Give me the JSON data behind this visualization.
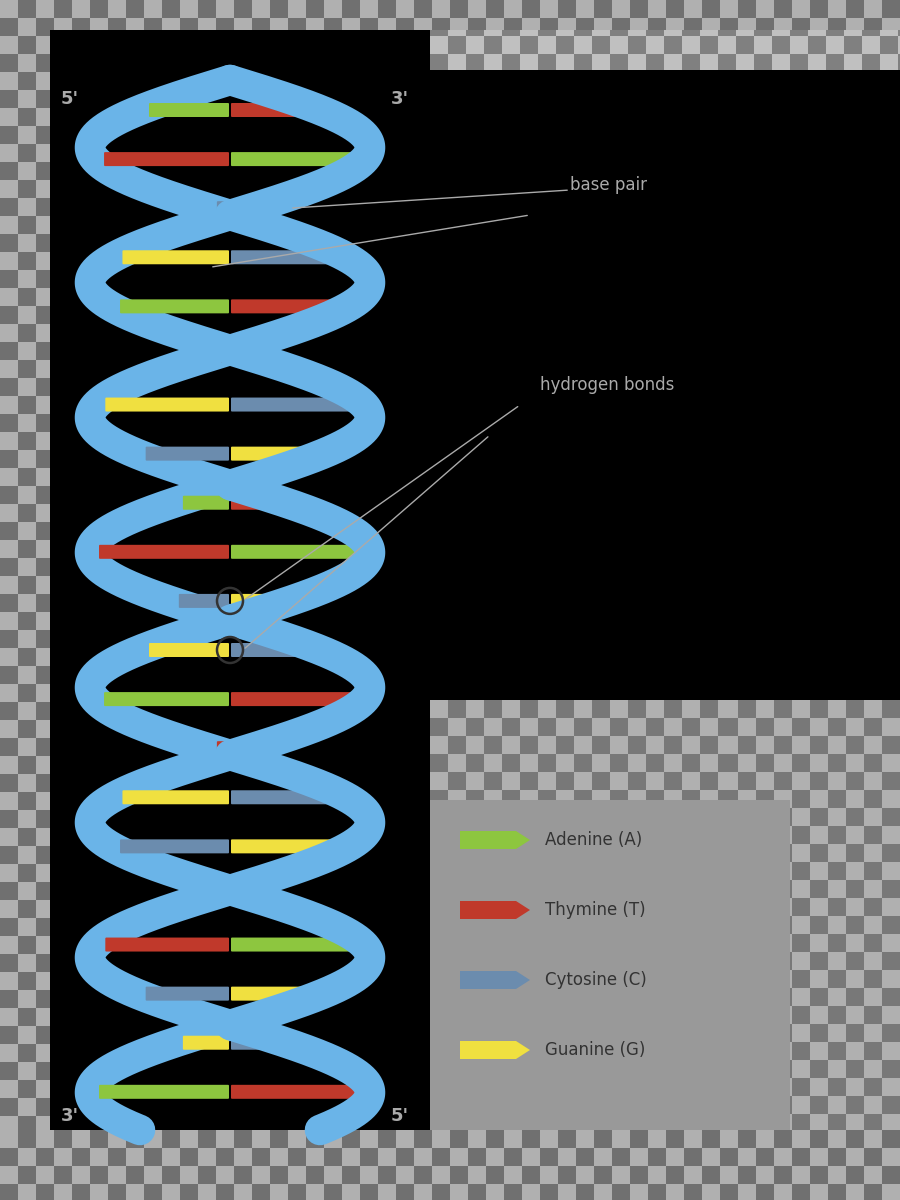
{
  "background_color": "#000000",
  "helix_color": "#6ab4e8",
  "adenine_color": "#8dc63f",
  "thymine_color": "#c0392b",
  "cytosine_color": "#6b8cae",
  "guanine_color": "#f0e040",
  "text_color": "#aaaaaa",
  "strand_lw": 22,
  "legend_items": [
    {
      "label": "Adenine (A)",
      "color": "#8dc63f"
    },
    {
      "label": "Thymine (T)",
      "color": "#c0392b"
    },
    {
      "label": "Cytosine (C)",
      "color": "#6b8cae"
    },
    {
      "label": "Guanine (G)",
      "color": "#f0e040"
    }
  ],
  "label_5prime_top_left": "5'",
  "label_3prime_top_right": "3'",
  "label_3prime_bottom_left": "3'",
  "label_5prime_bottom_right": "5'",
  "annotation_base_pair": "base pair",
  "annotation_hydrogen": "hydrogen bonds",
  "checkerboard_color1": "#c8c8c8",
  "checkerboard_color2": "#888888",
  "black_panel_color": "#000000",
  "gray_panel_color": "#999999"
}
